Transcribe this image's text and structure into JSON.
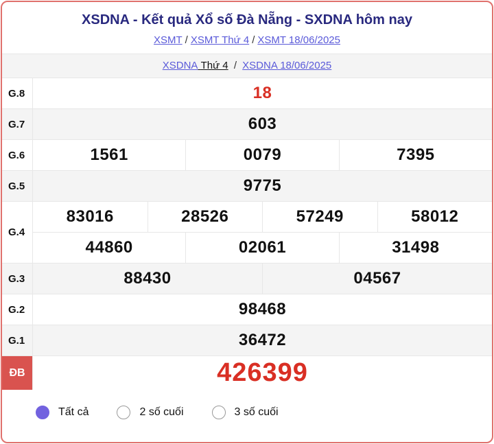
{
  "header": {
    "title": "XSDNA - Kết quả Xổ số Đà Nẵng - SXDNA hôm nay",
    "separator": "/",
    "breadcrumb1": [
      {
        "label": "XSMT"
      },
      {
        "label": "XSMT Thứ 4"
      },
      {
        "label": "XSMT 18/06/2025"
      }
    ],
    "breadcrumb2": {
      "link1": "XSDNA",
      "plain": "Thứ 4",
      "link2": "XSDNA 18/06/2025"
    }
  },
  "results": {
    "rows": [
      {
        "label": "G.8",
        "groups": [
          [
            "18"
          ]
        ],
        "highlight": true
      },
      {
        "label": "G.7",
        "groups": [
          [
            "603"
          ]
        ]
      },
      {
        "label": "G.6",
        "groups": [
          [
            "1561",
            "0079",
            "7395"
          ]
        ]
      },
      {
        "label": "G.5",
        "groups": [
          [
            "9775"
          ]
        ]
      },
      {
        "label": "G.4",
        "groups": [
          [
            "83016",
            "28526",
            "57249",
            "58012"
          ],
          [
            "44860",
            "02061",
            "31498"
          ]
        ]
      },
      {
        "label": "G.3",
        "groups": [
          [
            "88430",
            "04567"
          ]
        ]
      },
      {
        "label": "G.2",
        "groups": [
          [
            "98468"
          ]
        ]
      },
      {
        "label": "G.1",
        "groups": [
          [
            "36472"
          ]
        ]
      },
      {
        "label": "ĐB",
        "groups": [
          [
            "426399"
          ]
        ],
        "special": true
      }
    ]
  },
  "filters": {
    "options": [
      {
        "label": "Tất cả",
        "selected": true
      },
      {
        "label": "2 số cuối",
        "selected": false
      },
      {
        "label": "3 số cuối",
        "selected": false
      }
    ]
  },
  "colors": {
    "title_navy": "#29297f",
    "link_indigo": "#5a5ad9",
    "value_red": "#d92f24",
    "special_label_bg": "#d9534f",
    "radio_selected": "#7262df",
    "outer_border": "#e0716d"
  }
}
